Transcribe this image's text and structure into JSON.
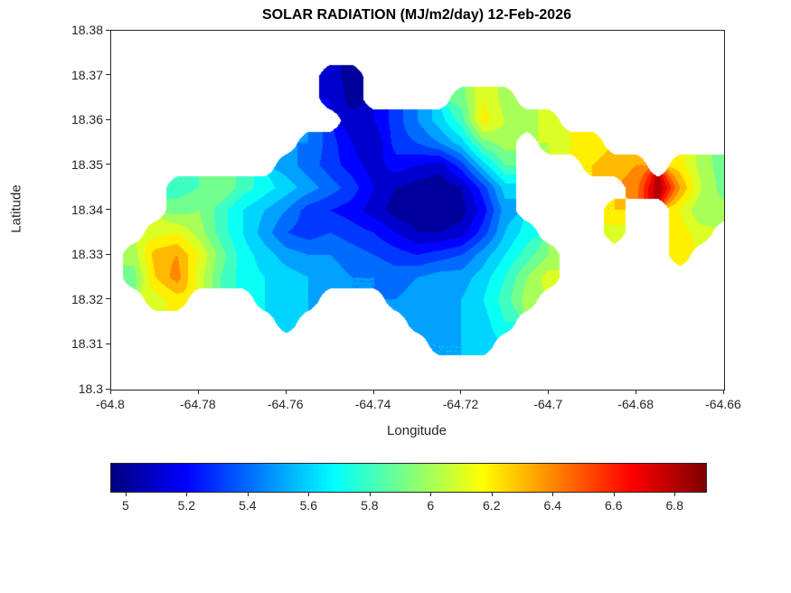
{
  "chart_data": {
    "type": "heatmap",
    "title": "SOLAR RADIATION (MJ/m2/day) 12-Feb-2026",
    "xlabel": "Longitude",
    "ylabel": "Latitude",
    "xlim": [
      -64.8,
      -64.66
    ],
    "ylim": [
      18.3,
      18.38
    ],
    "x_ticks": [
      -64.8,
      -64.78,
      -64.76,
      -64.74,
      -64.72,
      -64.7,
      -64.68,
      -64.66
    ],
    "x_tick_labels": [
      "-64.8",
      "-64.78",
      "-64.76",
      "-64.74",
      "-64.72",
      "-64.7",
      "-64.68",
      "-64.66"
    ],
    "y_ticks": [
      18.3,
      18.31,
      18.32,
      18.33,
      18.34,
      18.35,
      18.36,
      18.37,
      18.38
    ],
    "y_tick_labels": [
      "18.3",
      "18.31",
      "18.32",
      "18.33",
      "18.34",
      "18.35",
      "18.36",
      "18.37",
      "18.38"
    ],
    "colormap": "jet",
    "color_min": 4.95,
    "color_max": 6.9,
    "contour_step": 0.1,
    "colorbar_ticks": [
      5,
      5.2,
      5.4,
      5.6,
      5.8,
      6,
      6.2,
      6.4,
      6.6,
      6.8
    ],
    "colorbar_tick_labels": [
      "5",
      "5.2",
      "5.4",
      "5.6",
      "5.8",
      "6",
      "6.2",
      "6.4",
      "6.6",
      "6.8"
    ],
    "grid": {
      "lon_start": -64.8,
      "lon_step": 0.005,
      "lat_start": 18.38,
      "lat_step": -0.005,
      "ncols": 29,
      "nrows": 17,
      "note": "Solar radiation MJ/m2/day sampled on lon-lat grid; null = sea (no data)",
      "values": [
        [
          null,
          null,
          null,
          null,
          null,
          null,
          null,
          null,
          null,
          null,
          null,
          null,
          null,
          null,
          null,
          null,
          null,
          null,
          null,
          null,
          null,
          null,
          null,
          null,
          null,
          null,
          null,
          null,
          null
        ],
        [
          null,
          null,
          null,
          null,
          null,
          null,
          null,
          null,
          null,
          null,
          null,
          null,
          null,
          null,
          null,
          null,
          null,
          null,
          null,
          null,
          null,
          null,
          null,
          null,
          null,
          null,
          null,
          null,
          null
        ],
        [
          null,
          null,
          null,
          null,
          null,
          null,
          null,
          null,
          null,
          null,
          5.1,
          5.0,
          null,
          null,
          null,
          null,
          null,
          null,
          null,
          null,
          null,
          null,
          null,
          null,
          null,
          null,
          null,
          null,
          null
        ],
        [
          null,
          null,
          null,
          null,
          null,
          null,
          null,
          null,
          null,
          null,
          5.15,
          5.0,
          null,
          null,
          null,
          null,
          5.9,
          6.15,
          6.0,
          null,
          null,
          null,
          null,
          null,
          null,
          null,
          null,
          null,
          null
        ],
        [
          null,
          null,
          null,
          null,
          null,
          null,
          null,
          null,
          null,
          null,
          null,
          5.1,
          5.15,
          5.3,
          5.45,
          5.6,
          5.8,
          6.2,
          6.05,
          6.0,
          6.1,
          null,
          null,
          null,
          null,
          null,
          null,
          null,
          null
        ],
        [
          null,
          null,
          null,
          null,
          null,
          null,
          null,
          null,
          null,
          5.45,
          5.3,
          5.15,
          5.05,
          5.3,
          5.35,
          5.45,
          5.6,
          5.9,
          6.0,
          null,
          6.05,
          6.15,
          6.2,
          null,
          null,
          null,
          null,
          null,
          null
        ],
        [
          null,
          null,
          null,
          null,
          null,
          null,
          null,
          null,
          5.5,
          5.4,
          5.3,
          5.2,
          5.1,
          5.2,
          5.15,
          5.1,
          5.3,
          5.6,
          5.85,
          null,
          null,
          null,
          6.25,
          6.3,
          6.35,
          null,
          6.2,
          6.0,
          5.9
        ],
        [
          null,
          null,
          null,
          5.8,
          5.85,
          5.95,
          5.8,
          5.7,
          5.6,
          5.5,
          5.4,
          5.3,
          5.15,
          5.05,
          5.0,
          4.97,
          5.05,
          5.3,
          5.6,
          null,
          null,
          null,
          null,
          null,
          6.4,
          6.85,
          6.35,
          6.05,
          5.9
        ],
        [
          null,
          null,
          null,
          5.9,
          5.95,
          5.8,
          5.65,
          5.55,
          5.45,
          5.3,
          5.25,
          5.2,
          5.1,
          5.0,
          4.97,
          4.95,
          5.0,
          5.2,
          5.5,
          null,
          null,
          null,
          null,
          6.25,
          null,
          null,
          6.15,
          5.95,
          6.0
        ],
        [
          null,
          null,
          6.1,
          6.15,
          6.0,
          5.8,
          5.65,
          5.5,
          5.35,
          5.3,
          5.35,
          5.3,
          5.25,
          5.15,
          5.05,
          5.05,
          5.1,
          5.3,
          5.55,
          5.7,
          null,
          null,
          null,
          6.1,
          null,
          null,
          6.2,
          6.1,
          null
        ],
        [
          null,
          6.0,
          6.3,
          6.35,
          6.15,
          5.9,
          5.7,
          5.6,
          5.5,
          5.45,
          5.45,
          5.4,
          5.35,
          5.3,
          5.25,
          5.3,
          5.35,
          5.5,
          5.65,
          5.8,
          5.95,
          null,
          null,
          null,
          null,
          null,
          6.2,
          null,
          null
        ],
        [
          null,
          5.9,
          6.25,
          6.4,
          6.1,
          5.85,
          5.7,
          5.65,
          5.6,
          5.55,
          5.5,
          5.45,
          5.45,
          5.4,
          5.45,
          5.5,
          5.5,
          5.6,
          5.75,
          5.95,
          6.1,
          null,
          null,
          null,
          null,
          null,
          null,
          null,
          null
        ],
        [
          null,
          null,
          6.1,
          6.2,
          null,
          null,
          null,
          5.65,
          5.6,
          5.55,
          null,
          null,
          null,
          5.45,
          5.5,
          5.5,
          5.55,
          5.65,
          5.8,
          6.0,
          null,
          null,
          null,
          null,
          null,
          null,
          null,
          null,
          null
        ],
        [
          null,
          null,
          null,
          null,
          null,
          null,
          null,
          null,
          5.6,
          null,
          null,
          null,
          null,
          null,
          5.5,
          5.5,
          5.55,
          5.6,
          5.75,
          null,
          null,
          null,
          null,
          null,
          null,
          null,
          null,
          null,
          null
        ],
        [
          null,
          null,
          null,
          null,
          null,
          null,
          null,
          null,
          null,
          null,
          null,
          null,
          null,
          null,
          null,
          5.55,
          5.55,
          5.6,
          null,
          null,
          null,
          null,
          null,
          null,
          null,
          null,
          null,
          null,
          null
        ],
        [
          null,
          null,
          null,
          null,
          null,
          null,
          null,
          null,
          null,
          null,
          null,
          null,
          null,
          null,
          null,
          null,
          null,
          null,
          null,
          null,
          null,
          null,
          null,
          null,
          null,
          null,
          null,
          null,
          null
        ],
        [
          null,
          null,
          null,
          null,
          null,
          null,
          null,
          null,
          null,
          null,
          null,
          null,
          null,
          null,
          null,
          null,
          null,
          null,
          null,
          null,
          null,
          null,
          null,
          null,
          null,
          null,
          null,
          null,
          null
        ]
      ]
    }
  }
}
